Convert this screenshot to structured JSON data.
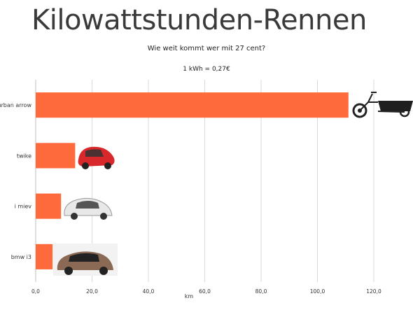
{
  "chart_data": {
    "type": "bar",
    "orientation": "horizontal",
    "title": "Kilowattstunden-Rennen",
    "subtitle": "Wie weit kommt wer mit 27 cent?",
    "note": "1 kWh = 0,27€",
    "categories": [
      "urban arrow",
      "twike",
      "i miev",
      "bmw i3"
    ],
    "values": [
      111,
      14,
      9,
      6
    ],
    "xlabel": "km",
    "xlim": [
      0,
      120
    ],
    "xticks": [
      "0,0",
      "20,0",
      "40,0",
      "60,0",
      "80,0",
      "100,0",
      "120,0"
    ],
    "grid": true,
    "bar_color": "#ff6a3d",
    "grid_color": "#d9d9d9"
  },
  "icons": [
    "cargo-bike-icon",
    "twike-car-icon",
    "i-miev-car-icon",
    "bmw-i3-car-icon"
  ]
}
